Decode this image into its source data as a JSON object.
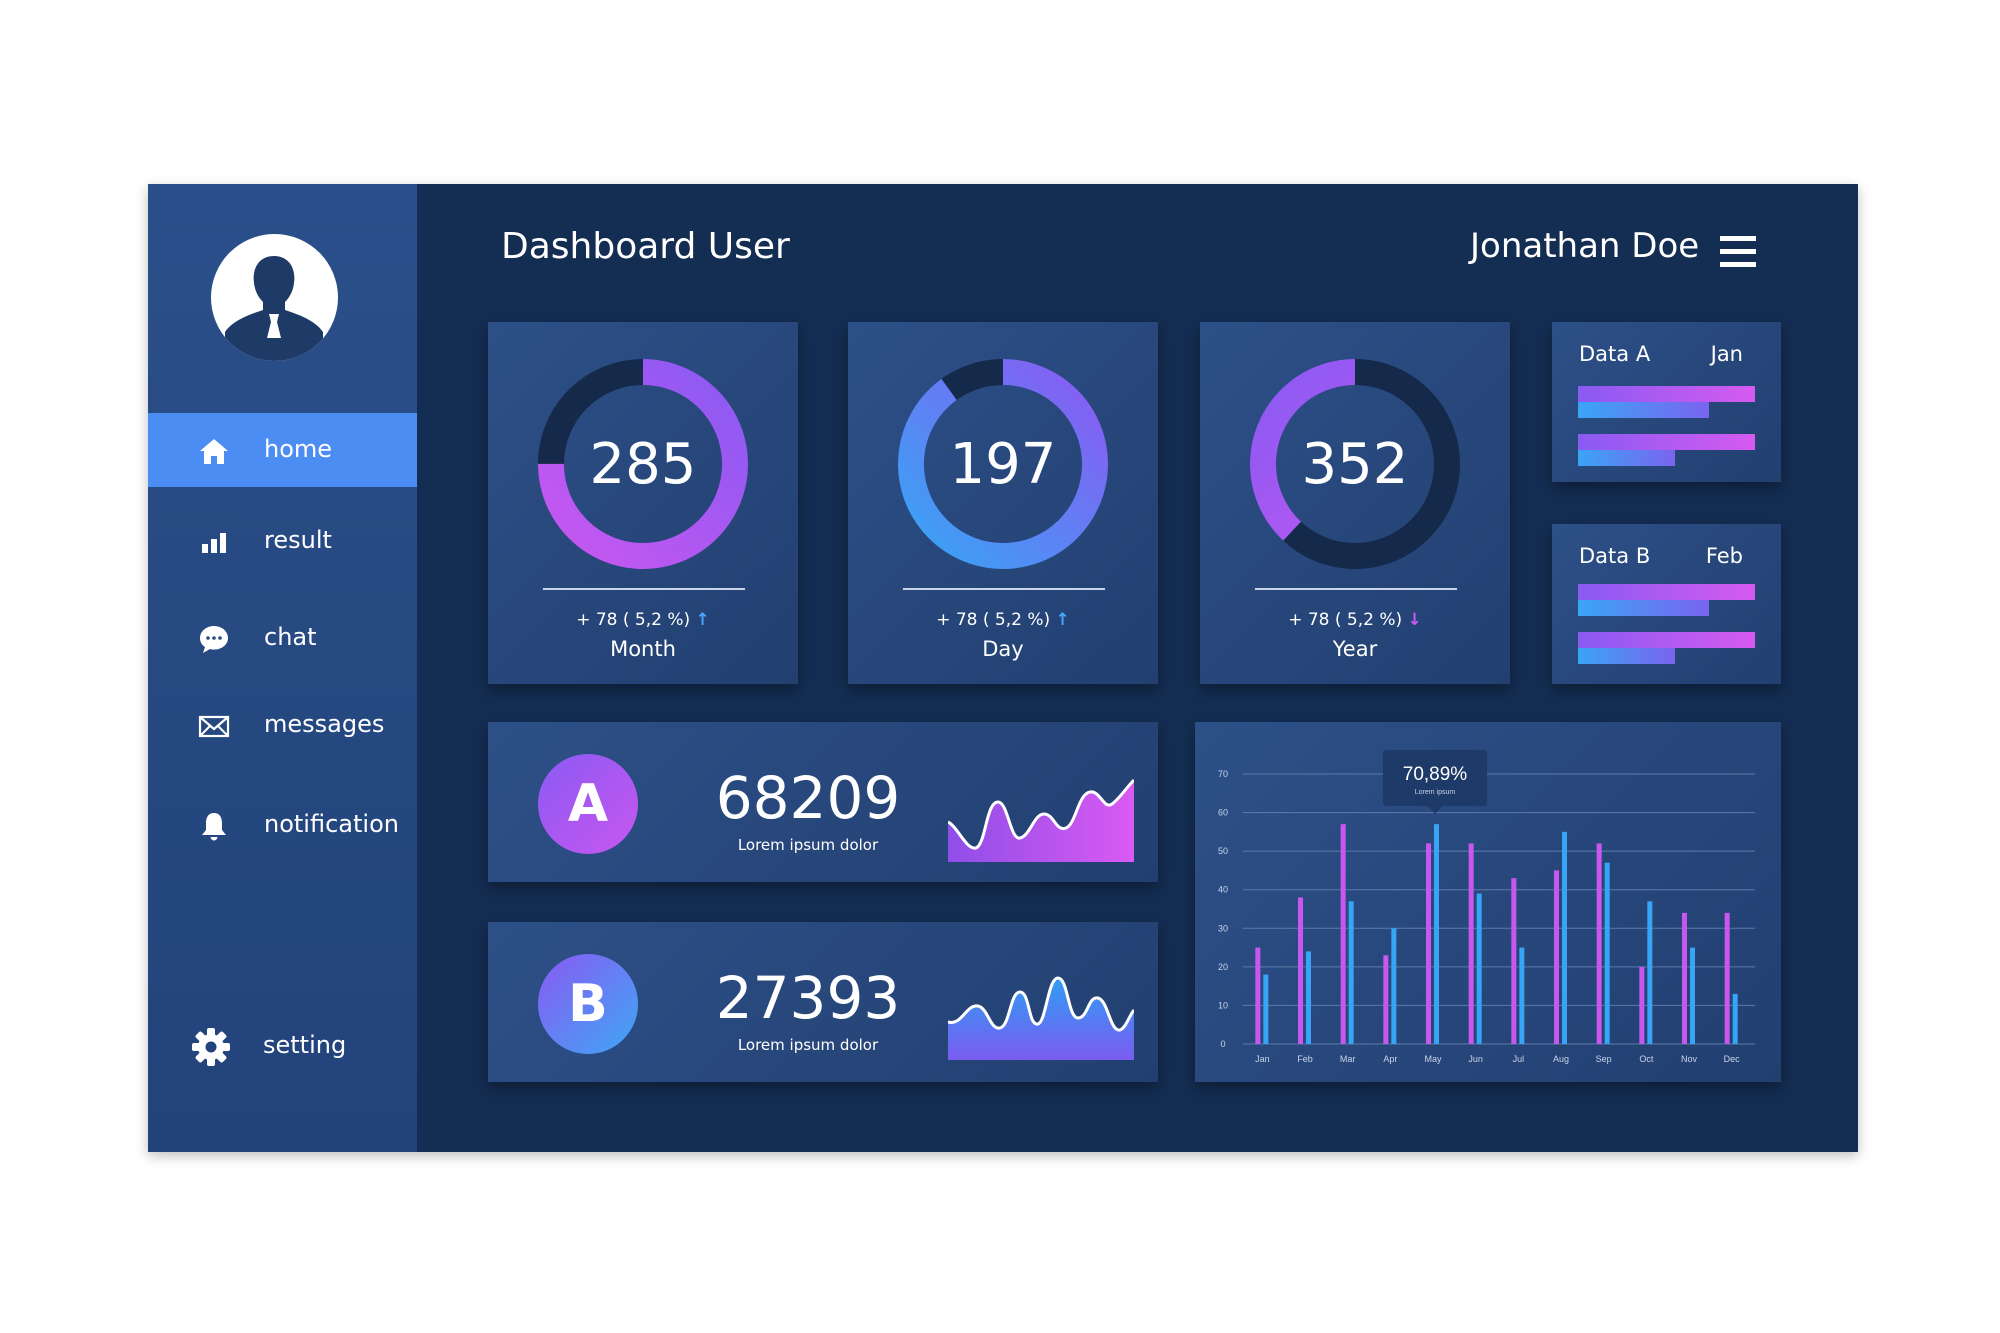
{
  "header": {
    "title": "Dashboard User",
    "user_name": "Jonathan Doe"
  },
  "sidebar": {
    "items": [
      {
        "label": "home",
        "icon": "home-icon",
        "active": true
      },
      {
        "label": "result",
        "icon": "bar-chart-icon",
        "active": false
      },
      {
        "label": "chat",
        "icon": "chat-bubble-icon",
        "active": false
      },
      {
        "label": "messages",
        "icon": "envelope-icon",
        "active": false
      },
      {
        "label": "notification",
        "icon": "bell-icon",
        "active": false
      }
    ],
    "setting": {
      "label": "setting",
      "icon": "gear-icon"
    }
  },
  "donuts": [
    {
      "value": "285",
      "change": "+ 78 ( 5,2 %)",
      "direction": "up",
      "period": "Month",
      "fraction": 0.75
    },
    {
      "value": "197",
      "change": "+ 78 ( 5,2 %)",
      "direction": "up",
      "period": "Day",
      "fraction": 0.9
    },
    {
      "value": "352",
      "change": "+ 78 ( 5,2 %)",
      "direction": "down",
      "period": "Year",
      "fraction": 0.38
    }
  ],
  "mini_cards": [
    {
      "label": "Data A",
      "month": "Jan",
      "bars": [
        1.0,
        0.74,
        1.0,
        0.55
      ]
    },
    {
      "label": "Data B",
      "month": "Feb",
      "bars": [
        1.0,
        0.74,
        1.0,
        0.55
      ]
    }
  ],
  "stats": [
    {
      "badge": "A",
      "value": "68209",
      "caption": "Lorem ipsum dolor"
    },
    {
      "badge": "B",
      "value": "27393",
      "caption": "Lorem ipsum dolor"
    }
  ],
  "colors": {
    "accent_blue": "#4c8df3",
    "purple": "#c857f0",
    "blue": "#38a4f5",
    "track": "#15294a",
    "background": "#142d52"
  },
  "chart_data": {
    "type": "bar",
    "categories": [
      "Jan",
      "Feb",
      "Mar",
      "Apr",
      "May",
      "Jun",
      "Jul",
      "Aug",
      "Sep",
      "Oct",
      "Nov",
      "Dec"
    ],
    "series": [
      {
        "values": [
          25,
          38,
          57,
          23,
          52,
          52,
          43,
          45,
          52,
          20,
          34,
          34
        ]
      },
      {
        "values": [
          18,
          24,
          37,
          30,
          57,
          39,
          25,
          55,
          47,
          37,
          25,
          13
        ]
      }
    ],
    "ylim": [
      0,
      70
    ],
    "yticks": [
      0,
      10,
      20,
      30,
      40,
      50,
      60,
      70
    ],
    "grid": true,
    "tooltip": {
      "value": "70,89%",
      "caption": "Lorem ipsum",
      "category": "May"
    }
  }
}
